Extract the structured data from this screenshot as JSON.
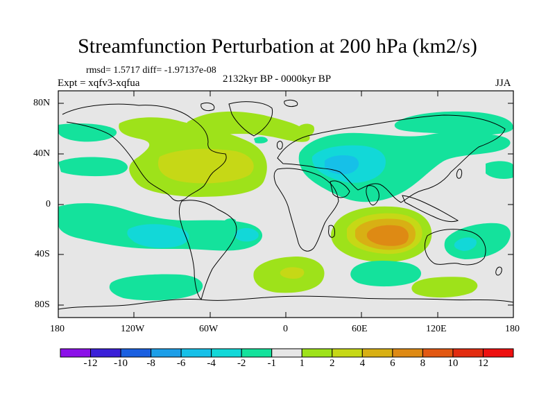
{
  "title": "Streamfunction Perturbation at 200 hPa (km2/s)",
  "stats": "rmsd= 1.5717 diff= -1.97137e-08",
  "experiment": "Expt = xqfv3-xqfua",
  "period": "2132kyr BP - 0000kyr BP",
  "season": "JJA",
  "y_ticks": [
    "80N",
    "40N",
    "0",
    "40S",
    "80S"
  ],
  "x_ticks": [
    "180",
    "120W",
    "60W",
    "0",
    "60E",
    "120E",
    "180"
  ],
  "colorbar": {
    "labels": [
      "-12",
      "-10",
      "-8",
      "-6",
      "-4",
      "-2",
      "-1",
      "1",
      "2",
      "4",
      "6",
      "8",
      "10",
      "12"
    ],
    "colors": [
      "#8b10e8",
      "#3a1fd8",
      "#1a5fe0",
      "#1c9ee8",
      "#16c0e8",
      "#12d8d8",
      "#14e29c",
      "#e6e6e6",
      "#9ee21a",
      "#c6d816",
      "#d8b014",
      "#de8a14",
      "#e25812",
      "#e22c10",
      "#ee1010"
    ]
  }
}
